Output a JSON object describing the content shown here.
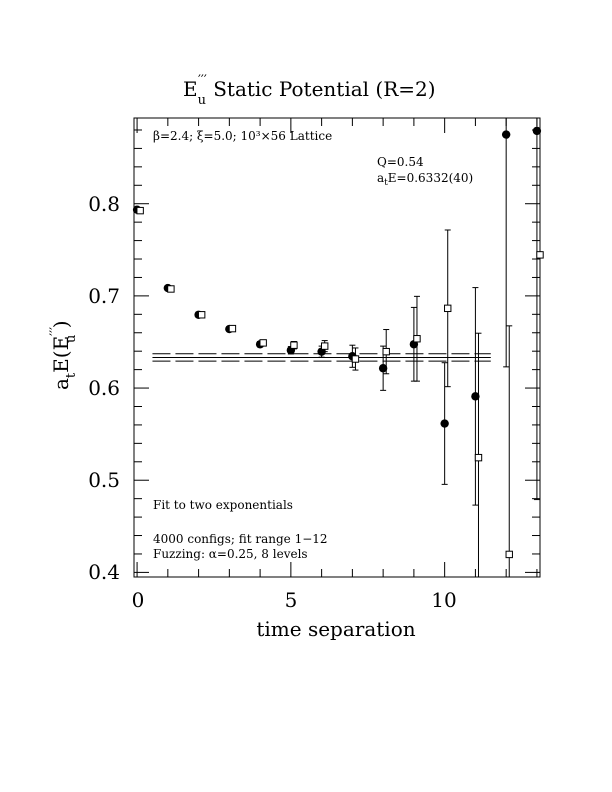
{
  "chart_data": {
    "type": "scatter",
    "title": {
      "prefix": "E",
      "sub": "u",
      "sup": "′′′",
      "suffix": "  Static Potential (R=2)"
    },
    "xlabel": "time separation",
    "ylabel": {
      "pre": "a",
      "sub1": "t",
      "mid": "E(E",
      "sup2": "′′′",
      "sub2": "u",
      "post": " )"
    },
    "xlim": [
      -0.1,
      13.1
    ],
    "ylim": [
      0.395,
      0.893
    ],
    "x_ticks": [
      0,
      5,
      10
    ],
    "y_ticks": [
      0.4,
      0.5,
      0.6,
      0.7,
      0.8
    ],
    "x_tick_labels": [
      "0",
      "5",
      "10"
    ],
    "y_tick_labels": [
      "0.4",
      "0.5",
      "0.6",
      "0.7",
      "0.8"
    ],
    "x_minor_step": 1,
    "y_minor_step": 0.02,
    "annotations": {
      "lattice": "β=2.4; ξ=5.0; 10³×56 Lattice",
      "q": "Q=0.54",
      "fit_result": {
        "pre": "a",
        "sub": "t",
        "post": "E=0.6332(40)"
      },
      "fit_type": "Fit to two exponentials",
      "configs": "4000 configs; fit range 1−12",
      "fuzzing": "Fuzzing: α=0.25, 8 levels"
    },
    "fit": {
      "central": 0.6332,
      "upper": 0.6372,
      "lower": 0.6292,
      "x_range": [
        0.5,
        11.5
      ]
    },
    "series": [
      {
        "marker": "filled-circle",
        "x": [
          0,
          1,
          2,
          3,
          4,
          5,
          6,
          7,
          8,
          9,
          10,
          11,
          12,
          13
        ],
        "y": [
          0.7935,
          0.7085,
          0.6795,
          0.664,
          0.6475,
          0.641,
          0.6395,
          0.6345,
          0.6215,
          0.6475,
          0.5615,
          0.591,
          0.875,
          0.879
        ],
        "err": [
          0.002,
          0.002,
          0.002,
          0.002,
          0.003,
          0.004,
          0.006,
          0.012,
          0.024,
          0.04,
          0.066,
          0.118,
          0.252,
          0.4
        ]
      },
      {
        "marker": "open-square",
        "x": [
          0.1,
          1.1,
          2.1,
          3.1,
          4.1,
          5.1,
          6.1,
          7.1,
          8.1,
          9.1,
          10.1,
          11.1,
          12.1,
          13.1
        ],
        "y": [
          0.7925,
          0.7075,
          0.6795,
          0.6645,
          0.649,
          0.6465,
          0.6455,
          0.6315,
          0.6395,
          0.6535,
          0.6865,
          0.5245,
          0.4195,
          0.7445
        ],
        "err": [
          0.002,
          0.002,
          0.002,
          0.002,
          0.003,
          0.004,
          0.006,
          0.012,
          0.024,
          0.046,
          0.085,
          0.135,
          0.248,
          0.4
        ]
      }
    ]
  }
}
